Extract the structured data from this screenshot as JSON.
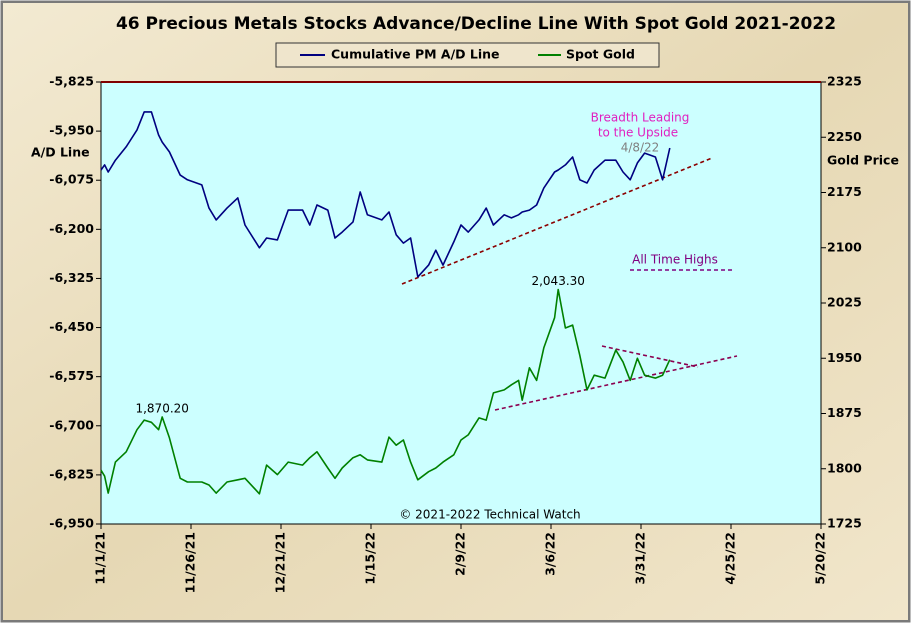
{
  "chart_data": {
    "type": "line",
    "title": "46 Precious Metals Stocks Advance/Decline Line With Spot Gold 2021-2022",
    "y_label": "A/D Line",
    "y2_label": "Gold Price",
    "annotations": [
      "Breadth Leading",
      "to the Upside",
      "4/8/22",
      "All Time Highs"
    ],
    "credit": "© 2021-2022 Technical Watch",
    "xlim": [
      "2021-11-01",
      "2022-05-20"
    ],
    "xticks": [
      {
        "value": "2021-11-01",
        "label": "11/1/21"
      },
      {
        "value": "2021-11-26",
        "label": "11/26/21"
      },
      {
        "value": "2021-12-21",
        "label": "12/21/21"
      },
      {
        "value": "2022-01-15",
        "label": "1/15/22"
      },
      {
        "value": "2022-02-09",
        "label": "2/9/22"
      },
      {
        "value": "2022-03-06",
        "label": "3/6/22"
      },
      {
        "value": "2022-03-31",
        "label": "3/31/22"
      },
      {
        "value": "2022-04-25",
        "label": "4/25/22"
      },
      {
        "value": "2022-05-20",
        "label": "5/20/22"
      }
    ],
    "ylim": [
      -6950,
      -5825
    ],
    "yticks": [
      {
        "value": -5825,
        "label": "-5,825"
      },
      {
        "value": -5950,
        "label": "-5,950"
      },
      {
        "value": -6075,
        "label": "-6,075"
      },
      {
        "value": -6200,
        "label": "-6,200"
      },
      {
        "value": -6325,
        "label": "-6,325"
      },
      {
        "value": -6450,
        "label": "-6,450"
      },
      {
        "value": -6575,
        "label": "-6,575"
      },
      {
        "value": -6700,
        "label": "-6,700"
      },
      {
        "value": -6825,
        "label": "-6,825"
      },
      {
        "value": -6950,
        "label": "-6,950"
      }
    ],
    "y2lim": [
      1725,
      2325
    ],
    "y2ticks": [
      2325,
      2250,
      2175,
      2100,
      2025,
      1950,
      1875,
      1800,
      1725
    ],
    "x": [
      "2021-11-01",
      "2021-11-02",
      "2021-11-03",
      "2021-11-05",
      "2021-11-08",
      "2021-11-11",
      "2021-11-13",
      "2021-11-15",
      "2021-11-17",
      "2021-11-18",
      "2021-11-20",
      "2021-11-23",
      "2021-11-25",
      "2021-11-29",
      "2021-12-01",
      "2021-12-03",
      "2021-12-06",
      "2021-12-09",
      "2021-12-11",
      "2021-12-15",
      "2021-12-17",
      "2021-12-20",
      "2021-12-23",
      "2021-12-27",
      "2021-12-29",
      "2021-12-31",
      "2022-01-03",
      "2022-01-05",
      "2022-01-07",
      "2022-01-10",
      "2022-01-12",
      "2022-01-14",
      "2022-01-18",
      "2022-01-20",
      "2022-01-22",
      "2022-01-24",
      "2022-01-26",
      "2022-01-28",
      "2022-01-31",
      "2022-02-02",
      "2022-02-04",
      "2022-02-07",
      "2022-02-09",
      "2022-02-11",
      "2022-02-14",
      "2022-02-16",
      "2022-02-18",
      "2022-02-21",
      "2022-02-23",
      "2022-02-25",
      "2022-02-26",
      "2022-02-28",
      "2022-03-02",
      "2022-03-04",
      "2022-03-07",
      "2022-03-08",
      "2022-03-10",
      "2022-03-12",
      "2022-03-14",
      "2022-03-16",
      "2022-03-18",
      "2022-03-21",
      "2022-03-24",
      "2022-03-26",
      "2022-03-28",
      "2022-03-30",
      "2022-04-01",
      "2022-04-04",
      "2022-04-06",
      "2022-04-08"
    ],
    "series": [
      {
        "name": "Cumulative PM A/D Line",
        "color": "#000080",
        "values": [
          -6049,
          -6036,
          -6054,
          -6024,
          -5990,
          -5947,
          -5901,
          -5901,
          -5960,
          -5978,
          -6003,
          -6062,
          -6074,
          -6087,
          -6146,
          -6176,
          -6146,
          -6120,
          -6189,
          -6247,
          -6222,
          -6227,
          -6151,
          -6151,
          -6189,
          -6138,
          -6151,
          -6222,
          -6207,
          -6181,
          -6105,
          -6163,
          -6176,
          -6156,
          -6214,
          -6235,
          -6222,
          -6321,
          -6291,
          -6253,
          -6291,
          -6232,
          -6189,
          -6207,
          -6176,
          -6146,
          -6189,
          -6163,
          -6171,
          -6163,
          -6156,
          -6151,
          -6138,
          -6095,
          -6054,
          -6049,
          -6036,
          -6016,
          -6074,
          -6082,
          -6049,
          -6024,
          -6024,
          -6054,
          -6074,
          -6031,
          -6006,
          -6016,
          -6074,
          -5993
        ]
      },
      {
        "name": "Spot Gold",
        "color": "#008000",
        "axis": "y2",
        "values": [
          1798,
          1790,
          1767,
          1809,
          1823,
          1853,
          1866,
          1863,
          1853,
          1870.2,
          1842,
          1787,
          1782,
          1782,
          1778,
          1767,
          1782,
          1785,
          1787,
          1766,
          1805,
          1792,
          1809,
          1805,
          1815,
          1823,
          1801,
          1787,
          1801,
          1815,
          1819,
          1812,
          1809,
          1843,
          1832,
          1839,
          1809,
          1785,
          1796,
          1801,
          1809,
          1819,
          1839,
          1846,
          1869,
          1866,
          1903,
          1907,
          1914,
          1920,
          1893,
          1937,
          1920,
          1964,
          2005,
          2043.3,
          1991,
          1995,
          1954,
          1907,
          1927,
          1923,
          1961,
          1945,
          1920,
          1950,
          1927,
          1923,
          1927,
          1948
        ],
        "value_labels": [
          null,
          null,
          null,
          null,
          null,
          null,
          null,
          null,
          null,
          "1,870.20",
          null,
          null,
          null,
          null,
          null,
          null,
          null,
          null,
          null,
          null,
          null,
          null,
          null,
          null,
          null,
          null,
          null,
          null,
          null,
          null,
          null,
          null,
          null,
          null,
          null,
          null,
          null,
          null,
          null,
          null,
          null,
          null,
          null,
          null,
          null,
          null,
          null,
          null,
          null,
          null,
          null,
          null,
          null,
          null,
          null,
          "2,043.30",
          null,
          null,
          null,
          null,
          null,
          null,
          null,
          null,
          null,
          null,
          null,
          null,
          null,
          null
        ]
      }
    ]
  }
}
